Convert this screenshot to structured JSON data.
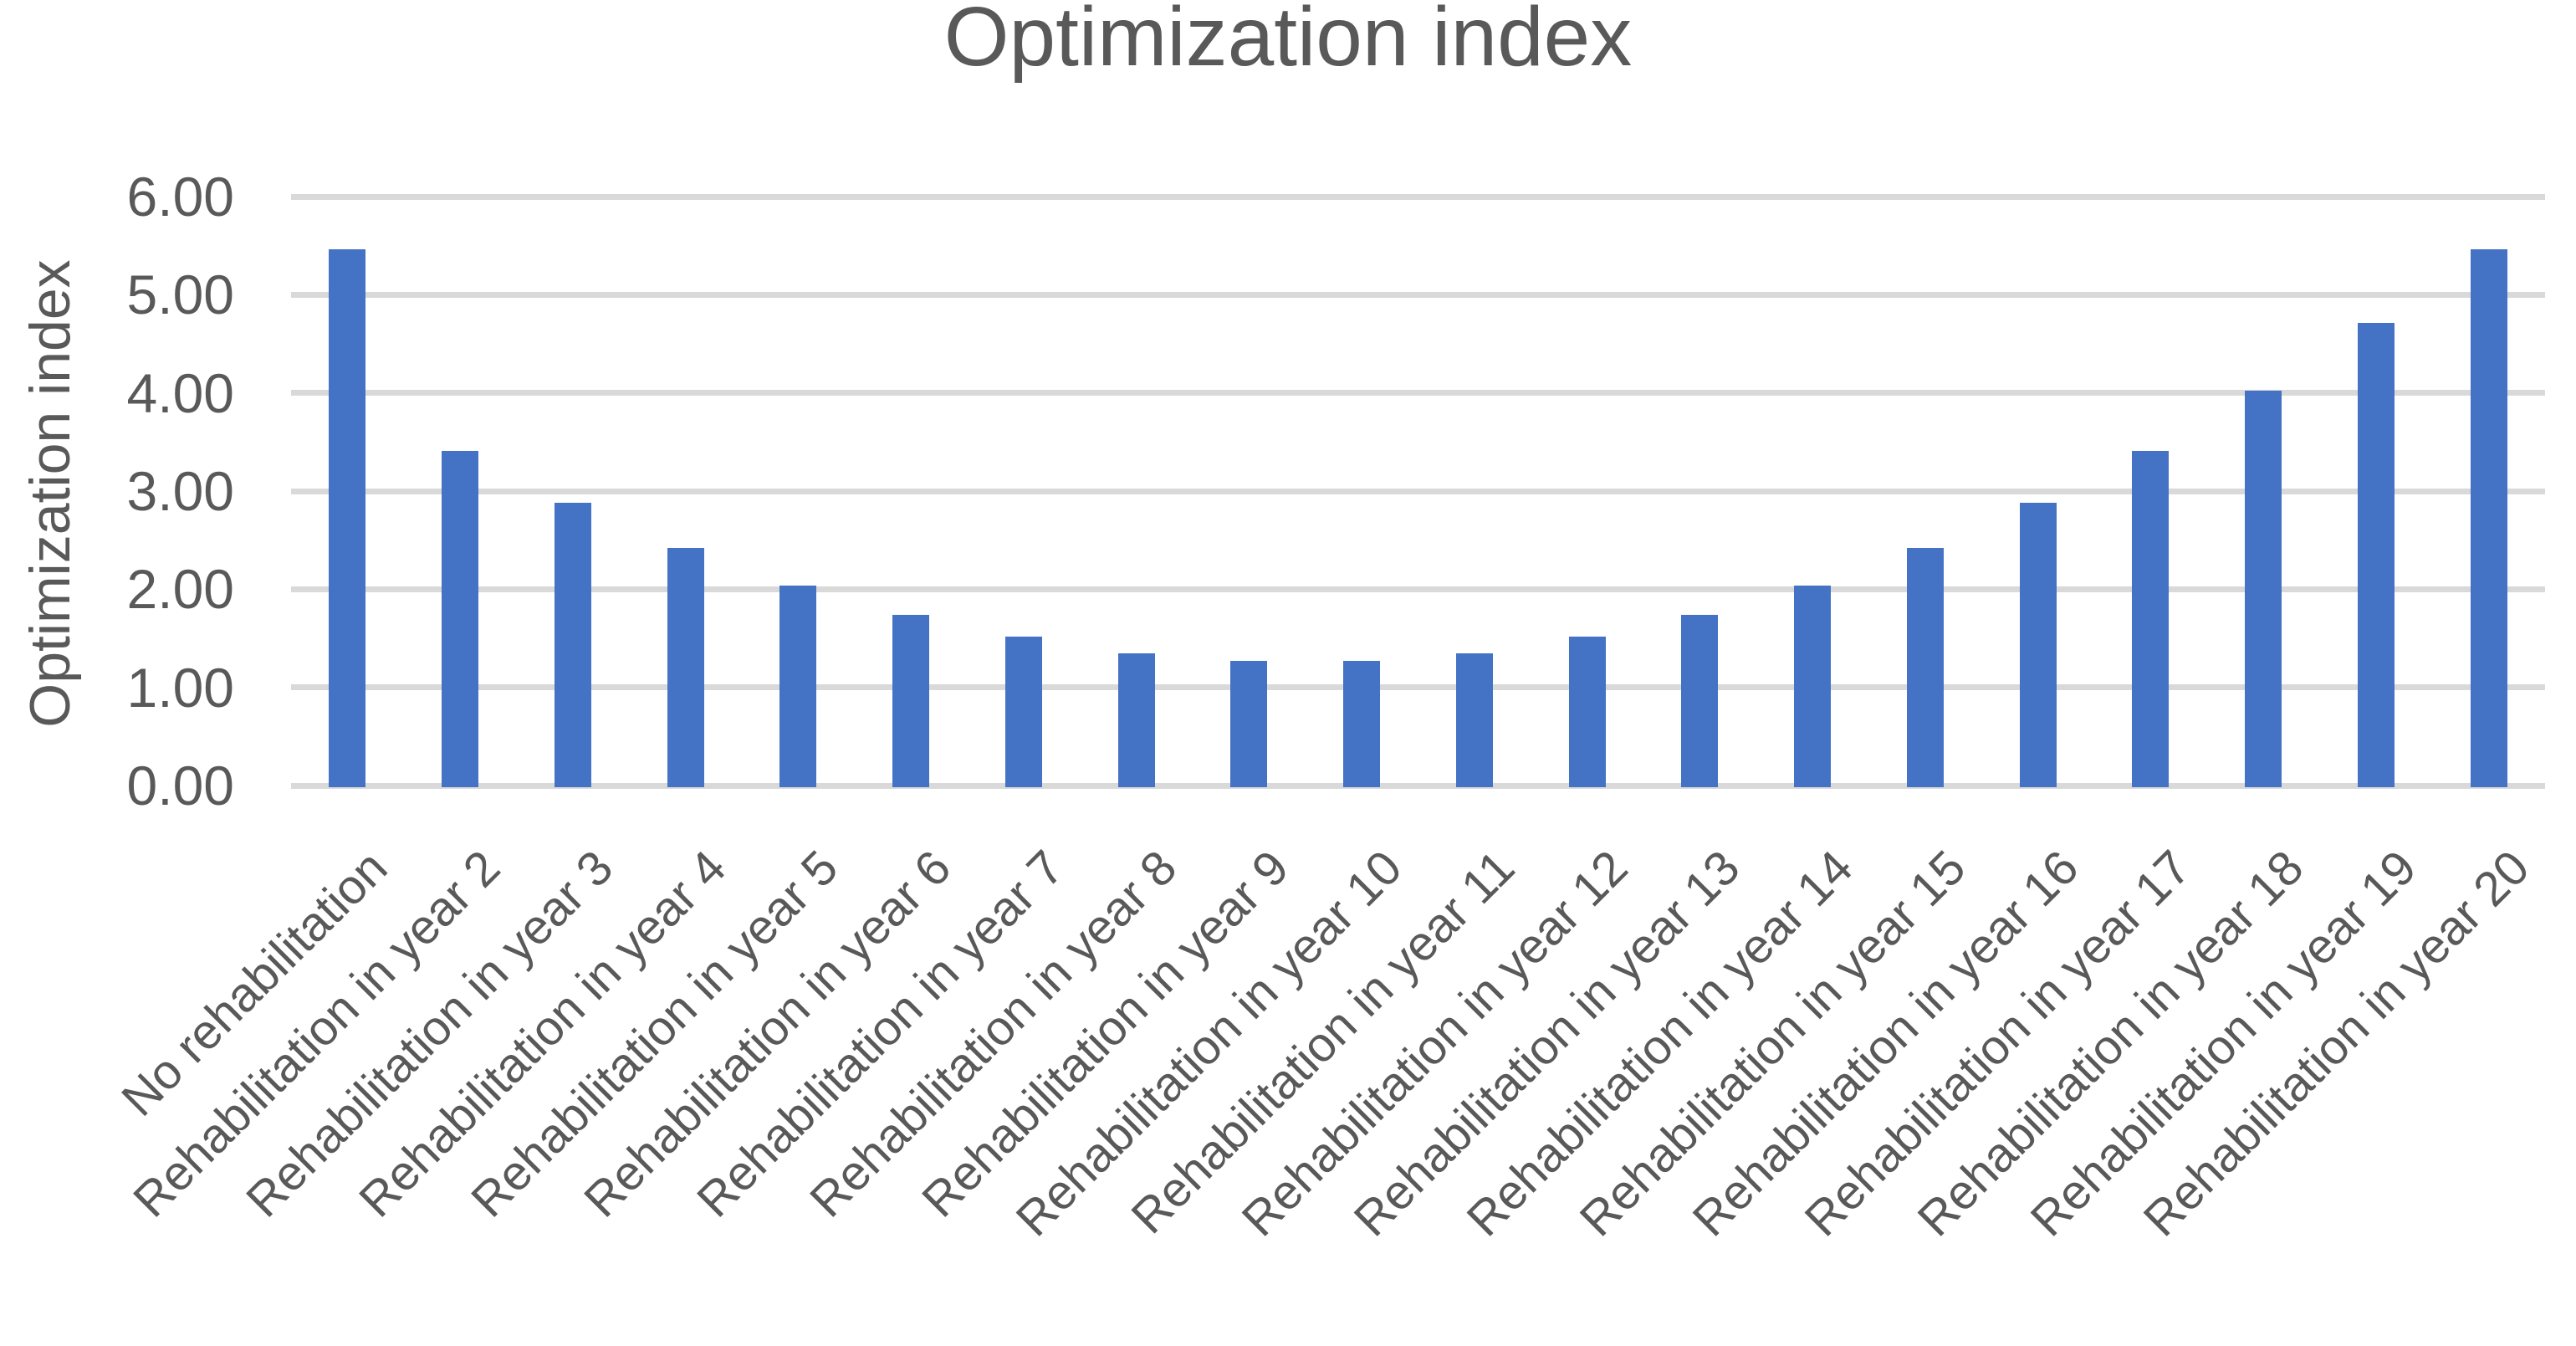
{
  "chart_data": {
    "type": "bar",
    "title": "Optimization index",
    "xlabel": "",
    "ylabel": "Optimization index",
    "ylim": [
      0,
      6
    ],
    "ytick_step": 1,
    "ytick_labels": [
      "0.00",
      "1.00",
      "2.00",
      "3.00",
      "4.00",
      "5.00",
      "6.00"
    ],
    "grid": true,
    "legend": false,
    "bar_color": "#4472C4",
    "gridline_color": "#D9D9D9",
    "text_color": "#595959",
    "background_color": "#FFFFFF",
    "categories": [
      "No rehabilitation",
      "Rehabilitation in year 2",
      "Rehabilitation in year 3",
      "Rehabilitation in year 4",
      "Rehabilitation in year 5",
      "Rehabilitation in year 6",
      "Rehabilitation in year 7",
      "Rehabilitation in year 8",
      "Rehabilitation in year 9",
      "Rehabilitation in year 10",
      "Rehabilitation in year 11",
      "Rehabilitation in year 12",
      "Rehabilitation in year 13",
      "Rehabilitation in year 14",
      "Rehabilitation in year 15",
      "Rehabilitation in year 16",
      "Rehabilitation in year 17",
      "Rehabilitation in year 18",
      "Rehabilitation in year 19",
      "Rehabilitation in year 20"
    ],
    "values": [
      5.46,
      3.41,
      2.88,
      2.42,
      2.04,
      1.74,
      1.52,
      1.35,
      1.27,
      1.27,
      1.35,
      1.52,
      1.74,
      2.04,
      2.42,
      2.88,
      3.41,
      4.02,
      4.71,
      5.46
    ]
  }
}
